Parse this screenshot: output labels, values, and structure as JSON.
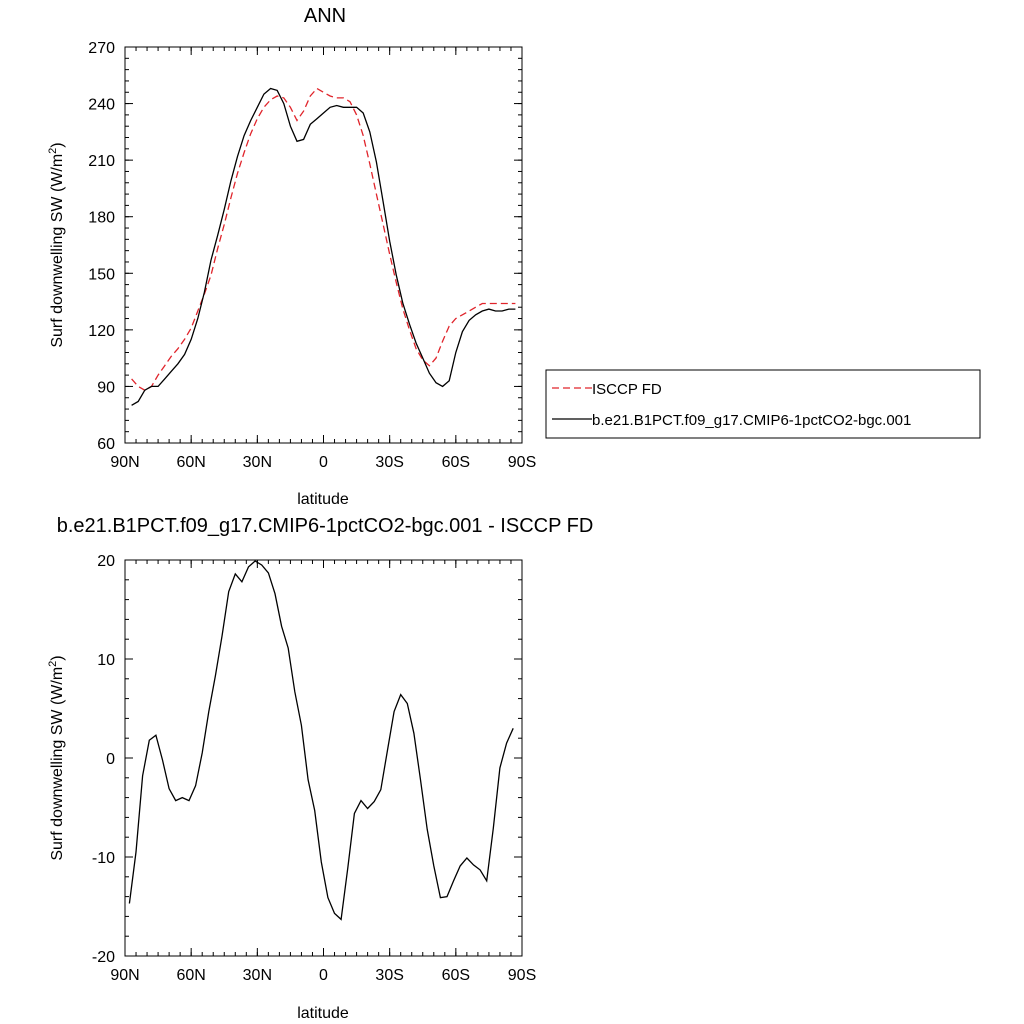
{
  "colors": {
    "obs": "#e0242b",
    "model": "#000000"
  },
  "chart_data": [
    {
      "type": "line",
      "title": "ANN",
      "xlabel": "latitude",
      "ylabel": "Surf downwelling SW (W/m",
      "ylabel_sup": "2",
      "ylabel_tail": ")",
      "xlim": [
        90,
        -90
      ],
      "ylim": [
        60,
        270
      ],
      "xticks": [
        90,
        60,
        30,
        0,
        -30,
        -60,
        -90
      ],
      "xtick_labels": [
        "90N",
        "60N",
        "30N",
        "0",
        "30S",
        "60S",
        "90S"
      ],
      "yticks": [
        60,
        90,
        120,
        150,
        180,
        210,
        240,
        270
      ],
      "ytick_labels": [
        "60",
        "90",
        "120",
        "150",
        "180",
        "210",
        "240",
        "270"
      ],
      "grid": false,
      "legend_position": "right",
      "series": [
        {
          "name": "ISCCP FD",
          "style": "dashed",
          "x": [
            87,
            84,
            81,
            78,
            75,
            72,
            69,
            66,
            63,
            60,
            57,
            54,
            51,
            48,
            45,
            42,
            39,
            36,
            33,
            30,
            27,
            24,
            21,
            18,
            15,
            12,
            9,
            6,
            3,
            0,
            -3,
            -6,
            -9,
            -12,
            -15,
            -18,
            -21,
            -24,
            -27,
            -30,
            -33,
            -36,
            -39,
            -42,
            -45,
            -48,
            -51,
            -54,
            -57,
            -60,
            -63,
            -66,
            -69,
            -72,
            -75,
            -78,
            -81,
            -84,
            -87
          ],
          "y": [
            94,
            90,
            88,
            90,
            96,
            101,
            106,
            110,
            115,
            121,
            130,
            139,
            149,
            163,
            176,
            190,
            203,
            214,
            224,
            232,
            238,
            242,
            244,
            243,
            238,
            231,
            236,
            244,
            248,
            246,
            244,
            243,
            243,
            241,
            234,
            223,
            208,
            192,
            176,
            160,
            145,
            131,
            120,
            110,
            104,
            101,
            105,
            114,
            122,
            126,
            128,
            130,
            132,
            134,
            134,
            134,
            134,
            134,
            134
          ]
        },
        {
          "name": "b.e21.B1PCT.f09_g17.CMIP6-1pctCO2-bgc.001",
          "style": "solid",
          "x": [
            87,
            84,
            81,
            78,
            75,
            72,
            69,
            66,
            63,
            60,
            57,
            54,
            51,
            48,
            45,
            42,
            39,
            36,
            33,
            30,
            27,
            24,
            21,
            18,
            15,
            12,
            9,
            6,
            3,
            0,
            -3,
            -6,
            -9,
            -12,
            -15,
            -18,
            -21,
            -24,
            -27,
            -30,
            -33,
            -36,
            -39,
            -42,
            -45,
            -48,
            -51,
            -54,
            -57,
            -60,
            -63,
            -66,
            -69,
            -72,
            -75,
            -78,
            -81,
            -84,
            -87
          ],
          "y": [
            80,
            82,
            88,
            90,
            90,
            94,
            98,
            102,
            107,
            115,
            126,
            140,
            157,
            170,
            184,
            199,
            212,
            223,
            231,
            238,
            245,
            248,
            247,
            240,
            228,
            220,
            221,
            229,
            232,
            235,
            238,
            239,
            238,
            238,
            238,
            235,
            225,
            209,
            188,
            167,
            149,
            134,
            123,
            113,
            105,
            97,
            92,
            90,
            93,
            108,
            119,
            125,
            128,
            130,
            131,
            130,
            130,
            131,
            131
          ]
        }
      ]
    },
    {
      "type": "line",
      "title": "b.e21.B1PCT.f09_g17.CMIP6-1pctCO2-bgc.001 - ISCCP FD",
      "xlabel": "latitude",
      "ylabel": "Surf downwelling SW (W/m",
      "ylabel_sup": "2",
      "ylabel_tail": ")",
      "xlim": [
        90,
        -90
      ],
      "ylim": [
        -20,
        20
      ],
      "xticks": [
        90,
        60,
        30,
        0,
        -30,
        -60,
        -90
      ],
      "xtick_labels": [
        "90N",
        "60N",
        "30N",
        "0",
        "30S",
        "60S",
        "90S"
      ],
      "yticks": [
        -20,
        -10,
        0,
        10,
        20
      ],
      "ytick_labels": [
        "-20",
        "-10",
        "0",
        "10",
        "20"
      ],
      "grid": false,
      "series": [
        {
          "style": "solid",
          "x": [
            88,
            85,
            82,
            79,
            76,
            73,
            70,
            67,
            64,
            61,
            58,
            55,
            52,
            49,
            46,
            43,
            40,
            37,
            34,
            31,
            28,
            25,
            22,
            19,
            16,
            13,
            10,
            7,
            4,
            1,
            -2,
            -5,
            -8,
            -11,
            -14,
            -17,
            -20,
            -23,
            -26,
            -29,
            -32,
            -35,
            -38,
            -41,
            -44,
            -47,
            -50,
            -53,
            -56,
            -59,
            -62,
            -65,
            -68,
            -71,
            -74,
            -77,
            -80,
            -83,
            -86
          ],
          "y": [
            -14.7,
            -9.5,
            -1.8,
            1.8,
            2.3,
            -0.2,
            -3.1,
            -4.3,
            -4.0,
            -4.3,
            -2.8,
            0.5,
            4.7,
            8.3,
            12.3,
            16.8,
            18.6,
            17.8,
            19.3,
            19.9,
            19.5,
            18.7,
            16.6,
            13.3,
            11.1,
            6.7,
            3.3,
            -2.2,
            -5.3,
            -10.5,
            -14.1,
            -15.7,
            -16.3,
            -11.1,
            -5.6,
            -4.3,
            -5.1,
            -4.4,
            -3.2,
            0.8,
            4.7,
            6.4,
            5.5,
            2.5,
            -2.2,
            -7.2,
            -10.9,
            -14.1,
            -14.0,
            -12.4,
            -10.9,
            -10.1,
            -10.8,
            -11.3,
            -12.4,
            -7.1,
            -1.0,
            1.5,
            3.0
          ]
        }
      ]
    }
  ]
}
